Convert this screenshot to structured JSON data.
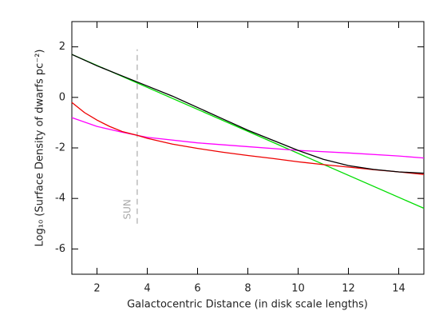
{
  "chart_data": {
    "type": "line",
    "xlabel": "Galactocentric Distance (in disk scale lengths)",
    "ylabel": "Log₁₀ (Surface Density of dwarfs pc⁻²)",
    "xlim": [
      1,
      15
    ],
    "ylim": [
      -7,
      3
    ],
    "xticks": [
      2,
      4,
      6,
      8,
      10,
      12,
      14
    ],
    "yticks": [
      -6,
      -4,
      -2,
      0,
      2
    ],
    "series": [
      {
        "color": "#00dd00",
        "x": [
          1,
          15
        ],
        "values": [
          1.7,
          -4.39
        ]
      },
      {
        "color": "#ff00ff",
        "x": [
          1,
          2,
          3,
          3.6,
          4,
          6,
          8,
          10,
          12,
          14,
          15
        ],
        "values": [
          -0.8,
          -1.15,
          -1.38,
          -1.5,
          -1.58,
          -1.8,
          -1.95,
          -2.1,
          -2.2,
          -2.32,
          -2.4
        ]
      },
      {
        "color": "#ee0000",
        "x": [
          1,
          1.5,
          2,
          2.5,
          3,
          3.6,
          4,
          5,
          6,
          7,
          8,
          9,
          10,
          11,
          12,
          13,
          14,
          15
        ],
        "values": [
          -0.2,
          -0.6,
          -0.9,
          -1.15,
          -1.35,
          -1.5,
          -1.62,
          -1.85,
          -2.02,
          -2.17,
          -2.3,
          -2.42,
          -2.55,
          -2.66,
          -2.76,
          -2.86,
          -2.95,
          -3.05
        ]
      },
      {
        "color": "#000000",
        "x": [
          1,
          2,
          3,
          4,
          5,
          6,
          7,
          8,
          9,
          10,
          11,
          12,
          13,
          14,
          15
        ],
        "values": [
          1.7,
          1.25,
          0.85,
          0.45,
          0.05,
          -0.4,
          -0.85,
          -1.3,
          -1.7,
          -2.1,
          -2.45,
          -2.7,
          -2.85,
          -2.95,
          -3.0
        ]
      }
    ],
    "marker_line": {
      "label": "SUN",
      "x": 3.6,
      "y": [
        -5,
        1.9
      ],
      "color": "#aaaaaa"
    }
  }
}
